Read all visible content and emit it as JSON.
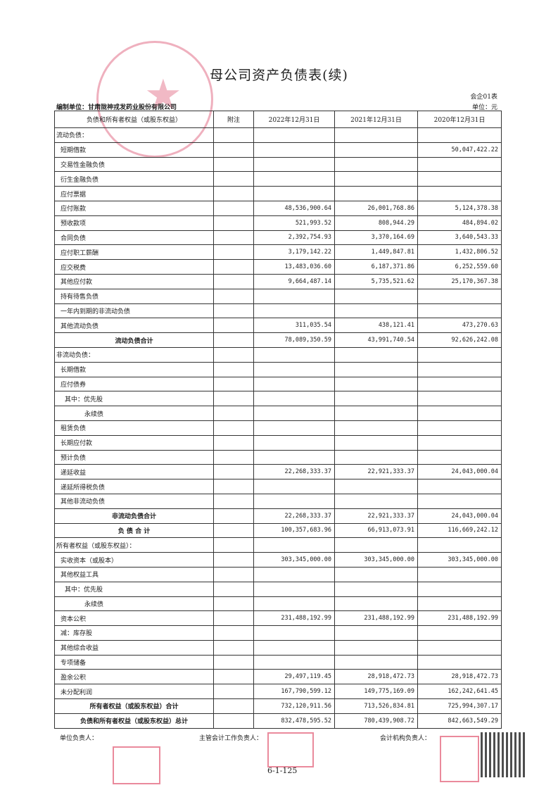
{
  "title": "母公司资产负债表(续)",
  "form_code": "会企01表",
  "unit": "单位：元",
  "org": "编制单位：甘肃陇神戎发药业股份有限公司",
  "headers": [
    "负债和所有者权益（或股东权益）",
    "附注",
    "2022年12月31日",
    "2021年12月31日",
    "2020年12月31日"
  ],
  "rows": [
    {
      "label": "流动负债：",
      "v": [
        "",
        "",
        ""
      ],
      "style": "l1"
    },
    {
      "label": "短期借款",
      "v": [
        "",
        "",
        "50,047,422.22"
      ],
      "style": "l2"
    },
    {
      "label": "交易性金融负债",
      "v": [
        "",
        "",
        ""
      ],
      "style": "l2"
    },
    {
      "label": "衍生金融负债",
      "v": [
        "",
        "",
        ""
      ],
      "style": "l2"
    },
    {
      "label": "应付票据",
      "v": [
        "",
        "",
        ""
      ],
      "style": "l2"
    },
    {
      "label": "应付账款",
      "v": [
        "48,536,900.64",
        "26,001,768.86",
        "5,124,378.38"
      ],
      "style": "l2"
    },
    {
      "label": "预收款项",
      "v": [
        "521,993.52",
        "808,944.29",
        "484,894.02"
      ],
      "style": "l2"
    },
    {
      "label": "合同负债",
      "v": [
        "2,392,754.93",
        "3,370,164.69",
        "3,640,543.33"
      ],
      "style": "l2"
    },
    {
      "label": "应付职工薪酬",
      "v": [
        "3,179,142.22",
        "1,449,847.81",
        "1,432,806.52"
      ],
      "style": "l2"
    },
    {
      "label": "应交税费",
      "v": [
        "13,483,036.60",
        "6,187,371.86",
        "6,252,559.60"
      ],
      "style": "l2"
    },
    {
      "label": "其他应付款",
      "v": [
        "9,664,487.14",
        "5,735,521.62",
        "25,170,367.38"
      ],
      "style": "l2"
    },
    {
      "label": "持有待售负债",
      "v": [
        "",
        "",
        ""
      ],
      "style": "l2"
    },
    {
      "label": "一年内到期的非流动负债",
      "v": [
        "",
        "",
        ""
      ],
      "style": "l2"
    },
    {
      "label": "其他流动负债",
      "v": [
        "311,035.54",
        "438,121.41",
        "473,270.63"
      ],
      "style": "l2"
    },
    {
      "label": "流动负债合计",
      "v": [
        "78,089,350.59",
        "43,991,740.54",
        "92,626,242.08"
      ],
      "style": "tot"
    },
    {
      "label": "非流动负债：",
      "v": [
        "",
        "",
        ""
      ],
      "style": "l1"
    },
    {
      "label": "长期借款",
      "v": [
        "",
        "",
        ""
      ],
      "style": "l2"
    },
    {
      "label": "应付债券",
      "v": [
        "",
        "",
        ""
      ],
      "style": "l2"
    },
    {
      "label": "其中：优先股",
      "v": [
        "",
        "",
        ""
      ],
      "style": "l3"
    },
    {
      "label": "永续债",
      "v": [
        "",
        "",
        ""
      ],
      "style": "l4"
    },
    {
      "label": "租赁负债",
      "v": [
        "",
        "",
        ""
      ],
      "style": "l2"
    },
    {
      "label": "长期应付款",
      "v": [
        "",
        "",
        ""
      ],
      "style": "l2"
    },
    {
      "label": "预计负债",
      "v": [
        "",
        "",
        ""
      ],
      "style": "l2"
    },
    {
      "label": "递延收益",
      "v": [
        "22,268,333.37",
        "22,921,333.37",
        "24,043,000.04"
      ],
      "style": "l2"
    },
    {
      "label": "递延所得税负债",
      "v": [
        "",
        "",
        ""
      ],
      "style": "l2"
    },
    {
      "label": "其他非流动负债",
      "v": [
        "",
        "",
        ""
      ],
      "style": "l2"
    },
    {
      "label": "非流动负债合计",
      "v": [
        "22,268,333.37",
        "22,921,333.37",
        "24,043,000.04"
      ],
      "style": "tot"
    },
    {
      "label": "负 债 合 计",
      "v": [
        "100,357,683.96",
        "66,913,073.91",
        "116,669,242.12"
      ],
      "style": "tot"
    },
    {
      "label": "所有者权益（或股东权益）：",
      "v": [
        "",
        "",
        ""
      ],
      "style": "l1"
    },
    {
      "label": "实收资本（或股本）",
      "v": [
        "303,345,000.00",
        "303,345,000.00",
        "303,345,000.00"
      ],
      "style": "l2"
    },
    {
      "label": "其他权益工具",
      "v": [
        "",
        "",
        ""
      ],
      "style": "l2"
    },
    {
      "label": "其中：优先股",
      "v": [
        "",
        "",
        ""
      ],
      "style": "l3"
    },
    {
      "label": "永续债",
      "v": [
        "",
        "",
        ""
      ],
      "style": "l4"
    },
    {
      "label": "资本公积",
      "v": [
        "231,488,192.99",
        "231,488,192.99",
        "231,488,192.99"
      ],
      "style": "l2"
    },
    {
      "label": "减：库存股",
      "v": [
        "",
        "",
        ""
      ],
      "style": "l2"
    },
    {
      "label": "其他综合收益",
      "v": [
        "",
        "",
        ""
      ],
      "style": "l2"
    },
    {
      "label": "专项储备",
      "v": [
        "",
        "",
        ""
      ],
      "style": "l2"
    },
    {
      "label": "盈余公积",
      "v": [
        "29,497,119.45",
        "28,918,472.73",
        "28,918,472.73"
      ],
      "style": "l2"
    },
    {
      "label": "未分配利润",
      "v": [
        "167,790,599.12",
        "149,775,169.09",
        "162,242,641.45"
      ],
      "style": "l2"
    },
    {
      "label": "所有者权益（或股东权益）合计",
      "v": [
        "732,120,911.56",
        "713,526,834.81",
        "725,994,307.17"
      ],
      "style": "tot"
    },
    {
      "label": "负债和所有者权益（或股东权益）总计",
      "v": [
        "832,478,595.52",
        "780,439,908.72",
        "842,663,549.29"
      ],
      "style": "tot"
    }
  ],
  "footer": {
    "unit_head": "单位负责人：",
    "accounting_head": "主管会计工作负责人：",
    "agency_head": "会计机构负责人："
  },
  "page_number": "6-1-125",
  "stamp_color": "#dc506e"
}
